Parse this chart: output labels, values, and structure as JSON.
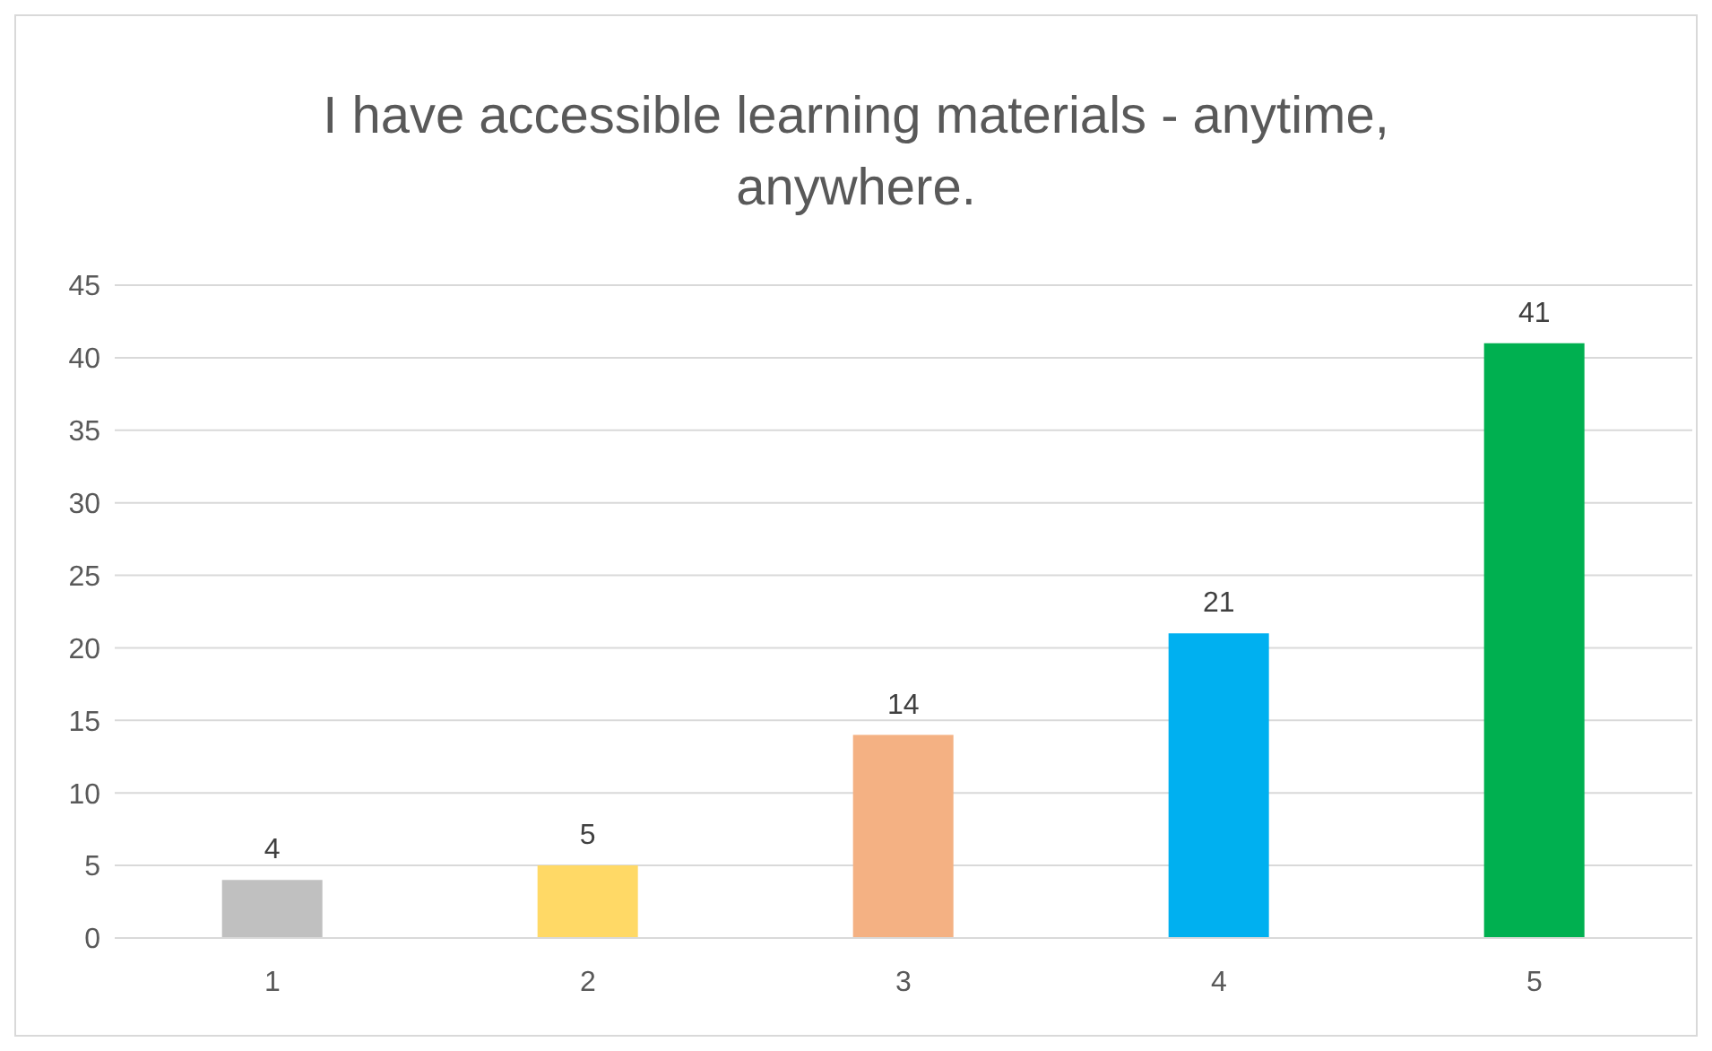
{
  "chart_data": {
    "type": "bar",
    "title": "I have accessible learning materials - anytime, anywhere.",
    "categories": [
      "1",
      "2",
      "3",
      "4",
      "5"
    ],
    "values": [
      4,
      5,
      14,
      21,
      41
    ],
    "colors": [
      "#c0c0c0",
      "#ffd966",
      "#f4b183",
      "#00b0f0",
      "#00b050"
    ],
    "ylim": [
      0,
      45
    ],
    "yticks": [
      0,
      5,
      10,
      15,
      20,
      25,
      30,
      35,
      40,
      45
    ],
    "grid": "y",
    "data_labels": true
  }
}
